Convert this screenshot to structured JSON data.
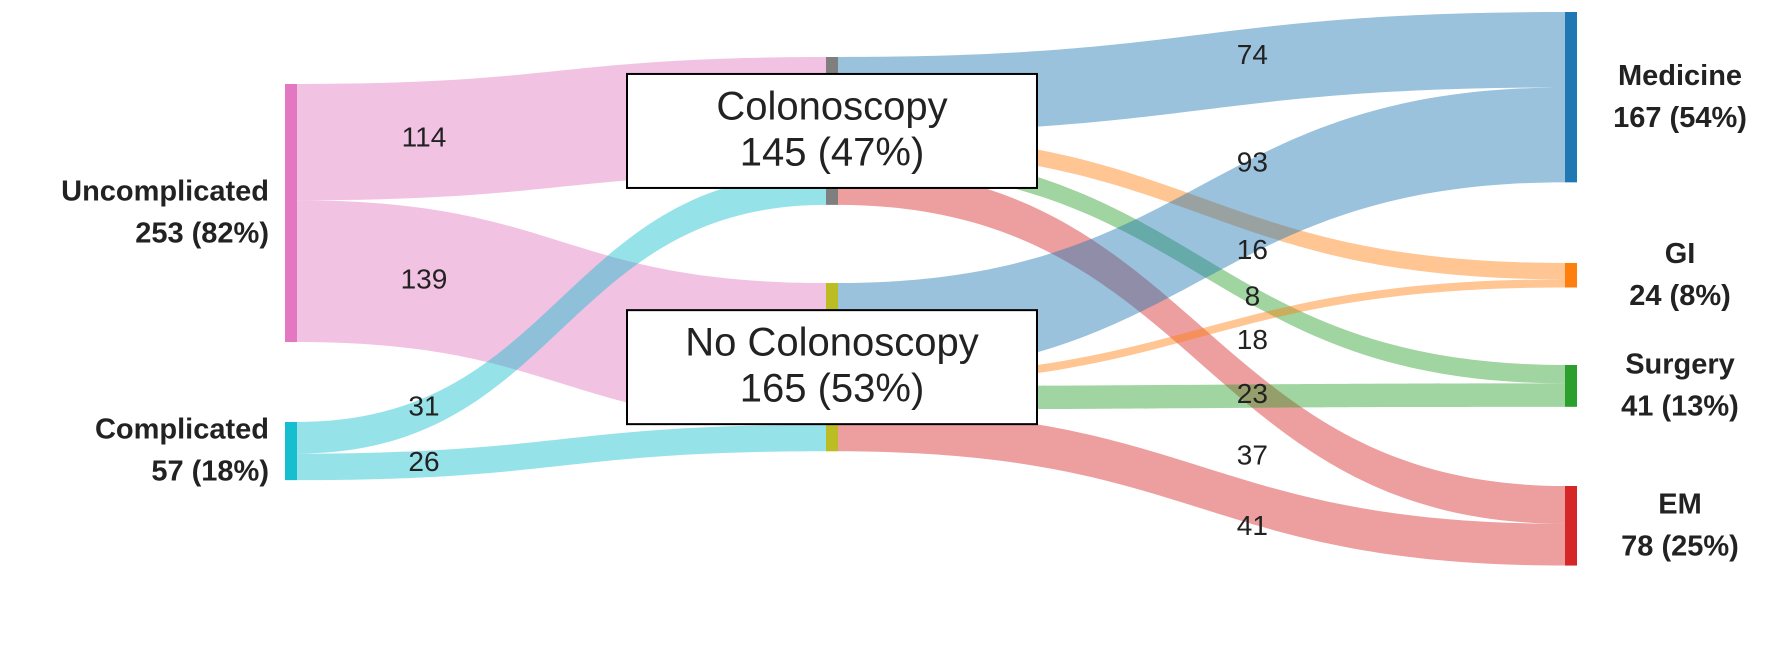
{
  "chart_data": {
    "type": "sankey",
    "nodes": [
      {
        "name": "Uncomplicated",
        "value": 253,
        "value_label": "253 (82%)",
        "color": "#e377c2"
      },
      {
        "name": "Complicated",
        "value": 57,
        "value_label": "57 (18%)",
        "color": "#17becf"
      },
      {
        "name": "Colonoscopy",
        "value": 145,
        "value_label": "145 (47%)",
        "color": "#7f7f7f"
      },
      {
        "name": "No Colonoscopy",
        "value": 165,
        "value_label": "165 (53%)",
        "color": "#bcbd22"
      },
      {
        "name": "Medicine",
        "value": 167,
        "value_label": "167 (54%)",
        "color": "#1f77b4"
      },
      {
        "name": "GI",
        "value": 24,
        "value_label": "24 (8%)",
        "color": "#ff7f0e"
      },
      {
        "name": "Surgery",
        "value": 41,
        "value_label": "41 (13%)",
        "color": "#2ca02c"
      },
      {
        "name": "EM",
        "value": 78,
        "value_label": "78 (25%)",
        "color": "#d62728"
      }
    ],
    "links": [
      {
        "source": "Uncomplicated",
        "target": "Colonoscopy",
        "value": 114,
        "color": "#e377c2"
      },
      {
        "source": "Uncomplicated",
        "target": "No Colonoscopy",
        "value": 139,
        "color": "#e377c2"
      },
      {
        "source": "Complicated",
        "target": "Colonoscopy",
        "value": 31,
        "color": "#17becf"
      },
      {
        "source": "Complicated",
        "target": "No Colonoscopy",
        "value": 26,
        "color": "#17becf"
      },
      {
        "source": "Colonoscopy",
        "target": "Medicine",
        "value": 74,
        "color": "#1f77b4"
      },
      {
        "source": "Colonoscopy",
        "target": "GI",
        "value": 16,
        "color": "#ff7f0e"
      },
      {
        "source": "Colonoscopy",
        "target": "Surgery",
        "value": 18,
        "color": "#2ca02c"
      },
      {
        "source": "Colonoscopy",
        "target": "EM",
        "value": 37,
        "color": "#d62728"
      },
      {
        "source": "No Colonoscopy",
        "target": "Medicine",
        "value": 93,
        "color": "#1f77b4"
      },
      {
        "source": "No Colonoscopy",
        "target": "GI",
        "value": 8,
        "color": "#ff7f0e"
      },
      {
        "source": "No Colonoscopy",
        "target": "Surgery",
        "value": 23,
        "color": "#2ca02c"
      },
      {
        "source": "No Colonoscopy",
        "target": "EM",
        "value": 41,
        "color": "#d62728"
      }
    ]
  }
}
